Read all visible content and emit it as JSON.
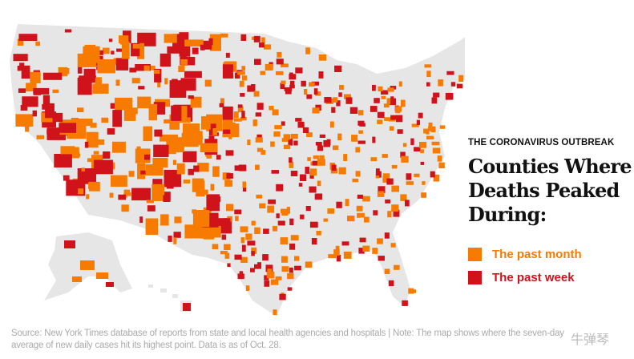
{
  "header": {
    "kicker": "THE CORONAVIRUS OUTBREAK",
    "title": "Counties Where Deaths Peaked During:"
  },
  "legend": [
    {
      "label": "The past month",
      "color": "#f77b00"
    },
    {
      "label": "The past week",
      "color": "#d0121b"
    }
  ],
  "colors": {
    "land": "#e6e6e6",
    "border": "#ffffff"
  },
  "source": "Source: New York Times database of reports from state and local health agencies and hospitals | Note: The map shows where the seven-day average of new daily cases hit its highest point. Data is as of Oct. 28.",
  "watermark": "牛弹琴"
}
